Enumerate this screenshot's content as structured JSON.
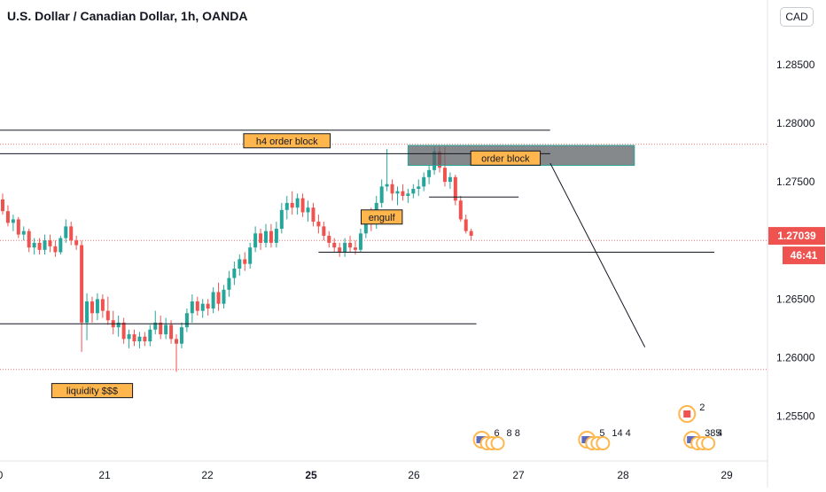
{
  "title": "U.S. Dollar / Canadian Dollar, 1h, OANDA",
  "currency_button": "CAD",
  "colors": {
    "up": "#26a69a",
    "down": "#ef5350",
    "price_tag": "#ef5350",
    "annotation_bg": "#ffb74d",
    "zone": "#5d6165",
    "line": "#131722"
  },
  "chart_data": {
    "type": "candlestick",
    "symbol": "USDCAD",
    "timeframe": "1h",
    "ylim": [
      1.2512,
      1.2905
    ],
    "y_ticks": [
      "1.28500",
      "1.28000",
      "1.27500",
      "1.26500",
      "1.26000",
      "1.25500"
    ],
    "x_ticks": [
      "0",
      "21",
      "22",
      "25",
      "26",
      "27",
      "28",
      "29"
    ],
    "x_ticks_bold": [
      "25"
    ],
    "current_price": "1.27039",
    "countdown": "46:41",
    "dotted_levels": [
      1.2782,
      1.27,
      1.259
    ],
    "candles": [
      [
        1.2735,
        1.274,
        1.2722,
        1.2725
      ],
      [
        1.2725,
        1.273,
        1.2712,
        1.2715
      ],
      [
        1.2715,
        1.2722,
        1.2708,
        1.2718
      ],
      [
        1.2718,
        1.272,
        1.2702,
        1.2705
      ],
      [
        1.2705,
        1.2712,
        1.27,
        1.2708
      ],
      [
        1.2708,
        1.271,
        1.269,
        1.2694
      ],
      [
        1.2694,
        1.2702,
        1.2688,
        1.2698
      ],
      [
        1.2698,
        1.2702,
        1.2688,
        1.2692
      ],
      [
        1.2692,
        1.2705,
        1.2688,
        1.27
      ],
      [
        1.27,
        1.2705,
        1.269,
        1.2695
      ],
      [
        1.2695,
        1.27,
        1.2686,
        1.269
      ],
      [
        1.269,
        1.2704,
        1.2688,
        1.2702
      ],
      [
        1.2702,
        1.2718,
        1.2698,
        1.2712
      ],
      [
        1.2712,
        1.2716,
        1.2696,
        1.27
      ],
      [
        1.27,
        1.2704,
        1.2692,
        1.2696
      ],
      [
        1.2696,
        1.27,
        1.2605,
        1.263
      ],
      [
        1.263,
        1.2655,
        1.2615,
        1.2648
      ],
      [
        1.2648,
        1.2652,
        1.263,
        1.2638
      ],
      [
        1.2638,
        1.2655,
        1.2632,
        1.265
      ],
      [
        1.265,
        1.2654,
        1.2634,
        1.264
      ],
      [
        1.264,
        1.2652,
        1.2628,
        1.2632
      ],
      [
        1.2632,
        1.264,
        1.262,
        1.2626
      ],
      [
        1.2626,
        1.2636,
        1.2618,
        1.263
      ],
      [
        1.263,
        1.2634,
        1.2612,
        1.2616
      ],
      [
        1.2616,
        1.2624,
        1.2608,
        1.262
      ],
      [
        1.262,
        1.2624,
        1.261,
        1.2614
      ],
      [
        1.2614,
        1.2622,
        1.2608,
        1.2618
      ],
      [
        1.2618,
        1.2622,
        1.261,
        1.2614
      ],
      [
        1.2614,
        1.2628,
        1.261,
        1.2624
      ],
      [
        1.2624,
        1.264,
        1.262,
        1.263
      ],
      [
        1.263,
        1.2636,
        1.2616,
        1.262
      ],
      [
        1.262,
        1.2634,
        1.2616,
        1.2628
      ],
      [
        1.2628,
        1.2632,
        1.2612,
        1.2616
      ],
      [
        1.2616,
        1.262,
        1.2588,
        1.2612
      ],
      [
        1.2612,
        1.263,
        1.2608,
        1.2626
      ],
      [
        1.2626,
        1.2642,
        1.2622,
        1.2638
      ],
      [
        1.2638,
        1.2654,
        1.263,
        1.2648
      ],
      [
        1.2648,
        1.2652,
        1.2636,
        1.264
      ],
      [
        1.264,
        1.265,
        1.2634,
        1.2646
      ],
      [
        1.2646,
        1.265,
        1.2636,
        1.2642
      ],
      [
        1.2642,
        1.266,
        1.2638,
        1.2656
      ],
      [
        1.2656,
        1.2664,
        1.264,
        1.2646
      ],
      [
        1.2646,
        1.2662,
        1.2642,
        1.2658
      ],
      [
        1.2658,
        1.2674,
        1.2652,
        1.2668
      ],
      [
        1.2668,
        1.2682,
        1.2662,
        1.2676
      ],
      [
        1.2676,
        1.2688,
        1.267,
        1.2684
      ],
      [
        1.2684,
        1.269,
        1.2674,
        1.268
      ],
      [
        1.268,
        1.2698,
        1.2676,
        1.2694
      ],
      [
        1.2694,
        1.2712,
        1.269,
        1.2706
      ],
      [
        1.2706,
        1.271,
        1.2692,
        1.2698
      ],
      [
        1.2698,
        1.2714,
        1.2694,
        1.2708
      ],
      [
        1.2708,
        1.2714,
        1.2694,
        1.2698
      ],
      [
        1.2698,
        1.2716,
        1.2694,
        1.271
      ],
      [
        1.271,
        1.2732,
        1.2706,
        1.2726
      ],
      [
        1.2726,
        1.2738,
        1.2718,
        1.2732
      ],
      [
        1.2732,
        1.2742,
        1.2722,
        1.2728
      ],
      [
        1.2728,
        1.274,
        1.2722,
        1.2736
      ],
      [
        1.2736,
        1.274,
        1.272,
        1.2724
      ],
      [
        1.2724,
        1.2734,
        1.2716,
        1.2728
      ],
      [
        1.2728,
        1.2732,
        1.2712,
        1.2716
      ],
      [
        1.2716,
        1.2722,
        1.2706,
        1.2712
      ],
      [
        1.2712,
        1.2716,
        1.27,
        1.2704
      ],
      [
        1.2704,
        1.2708,
        1.2694,
        1.2698
      ],
      [
        1.2698,
        1.2702,
        1.269,
        1.2694
      ],
      [
        1.2694,
        1.2698,
        1.2686,
        1.269
      ],
      [
        1.269,
        1.2702,
        1.2686,
        1.2698
      ],
      [
        1.2698,
        1.2704,
        1.269,
        1.2694
      ],
      [
        1.2694,
        1.27,
        1.2688,
        1.2692
      ],
      [
        1.2692,
        1.271,
        1.269,
        1.2706
      ],
      [
        1.2706,
        1.2726,
        1.2702,
        1.272
      ],
      [
        1.272,
        1.2728,
        1.2708,
        1.2714
      ],
      [
        1.2714,
        1.2738,
        1.271,
        1.2732
      ],
      [
        1.2732,
        1.2752,
        1.2728,
        1.2746
      ],
      [
        1.2746,
        1.2778,
        1.2742,
        1.2748
      ],
      [
        1.2748,
        1.2752,
        1.2734,
        1.274
      ],
      [
        1.274,
        1.2746,
        1.273,
        1.2742
      ],
      [
        1.2742,
        1.2748,
        1.2734,
        1.2738
      ],
      [
        1.2738,
        1.2744,
        1.2732,
        1.274
      ],
      [
        1.274,
        1.2748,
        1.2736,
        1.2744
      ],
      [
        1.2744,
        1.2752,
        1.2738,
        1.2746
      ],
      [
        1.2746,
        1.2758,
        1.2742,
        1.2754
      ],
      [
        1.2754,
        1.2764,
        1.2748,
        1.276
      ],
      [
        1.276,
        1.278,
        1.2756,
        1.2776
      ],
      [
        1.2776,
        1.278,
        1.2758,
        1.2762
      ],
      [
        1.2762,
        1.278,
        1.2746,
        1.275
      ],
      [
        1.275,
        1.2758,
        1.2744,
        1.2754
      ],
      [
        1.2754,
        1.2756,
        1.273,
        1.2734
      ],
      [
        1.2734,
        1.2738,
        1.2716,
        1.2718
      ],
      [
        1.2718,
        1.2722,
        1.2706,
        1.2708
      ],
      [
        1.2708,
        1.271,
        1.27,
        1.2704
      ]
    ],
    "horizontal_lines": [
      {
        "y": 1.2794,
        "from": 0,
        "to": 104
      },
      {
        "y": 1.2774,
        "from": 0,
        "to": 104
      },
      {
        "y": 1.2737,
        "from": 81,
        "to": 98
      },
      {
        "y": 1.269,
        "from": 60,
        "to": 136
      },
      {
        "y": 1.2629,
        "from": 0,
        "to": 90
      }
    ],
    "zone": {
      "label": "order block",
      "y1": 1.2781,
      "y2": 1.2764,
      "from": 77,
      "to": 120
    },
    "projection": {
      "from": [
        104,
        1.2766
      ],
      "to": [
        122,
        1.2609
      ]
    },
    "annotations": [
      {
        "label": "h4 order block",
        "anchor": [
          54,
          1.2785
        ]
      },
      {
        "label": "engulf",
        "anchor": [
          72,
          1.272
        ]
      },
      {
        "label": "liquidity $$$",
        "anchor": [
          17,
          1.2572
        ]
      }
    ],
    "events": [
      {
        "label": "6",
        "extra": "8 8",
        "x": 91
      },
      {
        "label": "5",
        "extra": "14 4",
        "x": 111
      },
      {
        "label": "385",
        "extra": "4",
        "x": 131
      },
      {
        "label": "2",
        "x": 130,
        "flag": "canada"
      }
    ]
  }
}
